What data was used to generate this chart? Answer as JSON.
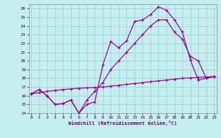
{
  "bg_color": "#c5eef0",
  "grid_color": "#a0c8ca",
  "line_color": "#990099",
  "xlim_min": -0.3,
  "xlim_max": 23.3,
  "ylim_min": 14,
  "ylim_max": 26.5,
  "xticks": [
    0,
    1,
    2,
    3,
    4,
    5,
    6,
    7,
    8,
    9,
    10,
    11,
    12,
    13,
    14,
    15,
    16,
    17,
    18,
    19,
    20,
    21,
    22,
    23
  ],
  "yticks": [
    14,
    15,
    16,
    17,
    18,
    19,
    20,
    21,
    22,
    23,
    24,
    25,
    26
  ],
  "xlabel": "Windchill (Refroidissement éolien,°C)",
  "line1_x": [
    0,
    1,
    2,
    3,
    4,
    5,
    6,
    7,
    8,
    9,
    10,
    11,
    12,
    13,
    14,
    15,
    16,
    17,
    18,
    19,
    20,
    21,
    22,
    23
  ],
  "line1_y": [
    16.2,
    16.7,
    16.0,
    15.0,
    15.1,
    15.5,
    14.0,
    15.0,
    15.3,
    19.5,
    22.2,
    21.5,
    22.3,
    24.5,
    24.7,
    25.3,
    26.2,
    25.8,
    24.7,
    23.3,
    20.1,
    17.8,
    18.0,
    18.2
  ],
  "line2_x": [
    0,
    1,
    2,
    3,
    4,
    5,
    6,
    7,
    8,
    9,
    10,
    11,
    12,
    13,
    14,
    15,
    16,
    17,
    18,
    19,
    20,
    21,
    22,
    23
  ],
  "line2_y": [
    16.2,
    16.7,
    16.0,
    15.0,
    15.1,
    15.5,
    14.0,
    15.5,
    16.5,
    17.5,
    19.0,
    20.0,
    21.0,
    22.0,
    23.0,
    24.0,
    24.7,
    24.7,
    23.3,
    22.5,
    20.5,
    20.0,
    18.0,
    18.2
  ],
  "line3_x": [
    0,
    1,
    2,
    3,
    4,
    5,
    6,
    7,
    8,
    9,
    10,
    11,
    12,
    13,
    14,
    15,
    16,
    17,
    18,
    19,
    20,
    21,
    22,
    23
  ],
  "line3_y": [
    16.2,
    16.35,
    16.5,
    16.6,
    16.7,
    16.8,
    16.85,
    16.9,
    16.95,
    17.0,
    17.1,
    17.2,
    17.3,
    17.4,
    17.5,
    17.6,
    17.7,
    17.8,
    17.9,
    18.0,
    18.05,
    18.1,
    18.15,
    18.2
  ]
}
